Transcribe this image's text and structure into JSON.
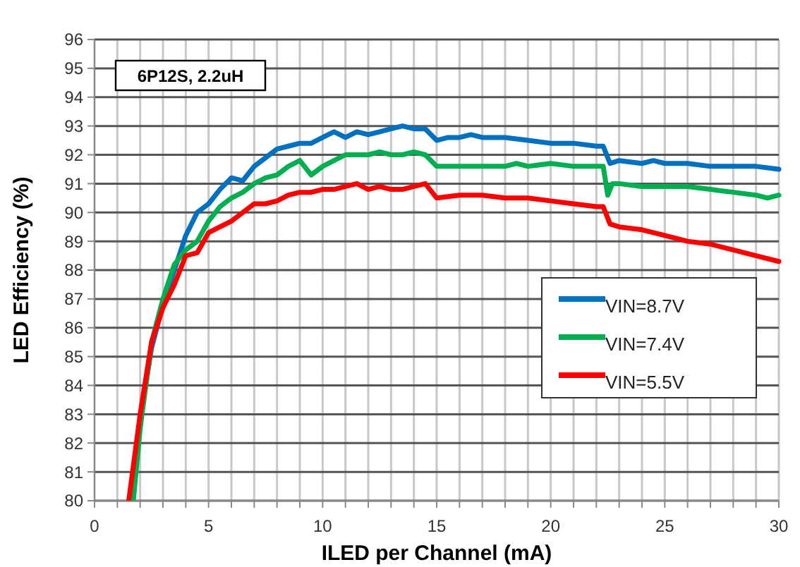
{
  "chart_data": {
    "type": "line",
    "xlabel": "ILED per Channel (mA)",
    "ylabel": "LED Efficiency (%)",
    "annotations": [
      "6P12S, 2.2uH"
    ],
    "xlim": [
      0,
      30
    ],
    "ylim": [
      80,
      96
    ],
    "xticks": [
      0,
      {
        "value": 1,
        "label": null
      },
      {
        "value": 2,
        "label": null
      },
      {
        "value": 3,
        "label": null
      },
      {
        "value": 4,
        "label": null
      },
      5,
      {
        "value": 6,
        "label": null
      },
      {
        "value": 7,
        "label": null
      },
      {
        "value": 8,
        "label": null
      },
      {
        "value": 9,
        "label": null
      },
      10,
      {
        "value": 11,
        "label": null
      },
      {
        "value": 12,
        "label": null
      },
      {
        "value": 13,
        "label": null
      },
      {
        "value": 14,
        "label": null
      },
      15,
      {
        "value": 16,
        "label": null
      },
      {
        "value": 17,
        "label": null
      },
      {
        "value": 18,
        "label": null
      },
      {
        "value": 19,
        "label": null
      },
      20,
      {
        "value": 21,
        "label": null
      },
      {
        "value": 22,
        "label": null
      },
      {
        "value": 23,
        "label": null
      },
      {
        "value": 24,
        "label": null
      },
      25,
      {
        "value": 26,
        "label": null
      },
      {
        "value": 27,
        "label": null
      },
      {
        "value": 28,
        "label": null
      },
      {
        "value": 29,
        "label": null
      },
      30
    ],
    "yticks": [
      80,
      81,
      82,
      83,
      84,
      85,
      86,
      87,
      88,
      89,
      90,
      91,
      92,
      93,
      94,
      95,
      96
    ],
    "grid": true,
    "legend": "bottom right",
    "marker": "none",
    "line_style": "solid",
    "series": [
      {
        "name": "VIN=8.7V",
        "color": "#0070c0",
        "x": [
          1.6,
          2,
          2.5,
          3,
          3.5,
          4,
          4.5,
          5,
          5.5,
          6,
          6.5,
          7,
          7.5,
          8,
          8.5,
          9,
          9.5,
          10,
          10.5,
          11,
          11.5,
          12,
          12.5,
          13,
          13.5,
          14,
          14.5,
          15,
          15.5,
          16,
          16.5,
          17,
          17.5,
          18,
          19,
          20,
          21,
          22,
          22.3,
          22.6,
          23,
          24,
          24.5,
          25,
          26,
          27,
          28,
          29,
          30
        ],
        "values": [
          80,
          82.8,
          85.3,
          86.8,
          88,
          89.2,
          90,
          90.3,
          90.8,
          91.2,
          91.1,
          91.6,
          91.9,
          92.2,
          92.3,
          92.4,
          92.4,
          92.6,
          92.8,
          92.6,
          92.8,
          92.7,
          92.8,
          92.9,
          93,
          92.9,
          92.9,
          92.5,
          92.6,
          92.6,
          92.7,
          92.6,
          92.6,
          92.6,
          92.5,
          92.4,
          92.4,
          92.3,
          92.3,
          91.7,
          91.8,
          91.7,
          91.8,
          91.7,
          91.7,
          91.6,
          91.6,
          91.6,
          91.5
        ]
      },
      {
        "name": "VIN=7.4V",
        "color": "#00b050",
        "x": [
          1.7,
          2,
          2.5,
          3,
          3.5,
          4,
          4.5,
          5,
          5.5,
          6,
          6.5,
          7,
          7.5,
          8,
          8.5,
          9,
          9.5,
          10,
          10.5,
          11,
          11.5,
          12,
          12.5,
          13,
          13.5,
          14,
          14.5,
          15,
          15.5,
          16,
          17,
          18,
          18.5,
          19,
          20,
          21,
          22,
          22.3,
          22.5,
          22.7,
          23,
          24,
          25,
          26,
          27,
          28,
          29,
          29.5,
          30
        ],
        "values": [
          80,
          82.5,
          85.5,
          87,
          88.2,
          88.7,
          89,
          89.7,
          90.2,
          90.5,
          90.7,
          91,
          91.2,
          91.3,
          91.6,
          91.8,
          91.3,
          91.6,
          91.8,
          92,
          92,
          92,
          92.1,
          92,
          92,
          92.1,
          92,
          91.6,
          91.6,
          91.6,
          91.6,
          91.6,
          91.7,
          91.6,
          91.7,
          91.6,
          91.6,
          91.6,
          90.6,
          91,
          91,
          90.9,
          90.9,
          90.9,
          90.8,
          90.7,
          90.6,
          90.5,
          90.6
        ]
      },
      {
        "name": "VIN=5.5V",
        "color": "#ff0000",
        "x": [
          1.5,
          2,
          2.5,
          3,
          3.5,
          4,
          4.5,
          5,
          5.5,
          6,
          6.5,
          7,
          7.5,
          8,
          8.5,
          9,
          9.5,
          10,
          10.5,
          11,
          11.5,
          12,
          12.5,
          13,
          13.5,
          14,
          14.5,
          15,
          16,
          17,
          18,
          19,
          20,
          21,
          22,
          22.3,
          22.6,
          23,
          24,
          25,
          26,
          27,
          28,
          29,
          30
        ],
        "values": [
          80,
          83,
          85.5,
          86.7,
          87.5,
          88.5,
          88.6,
          89.3,
          89.5,
          89.7,
          90,
          90.3,
          90.3,
          90.4,
          90.6,
          90.7,
          90.7,
          90.8,
          90.8,
          90.9,
          91,
          90.8,
          90.9,
          90.8,
          90.8,
          90.9,
          91,
          90.5,
          90.6,
          90.6,
          90.5,
          90.5,
          90.4,
          90.3,
          90.2,
          90.2,
          89.6,
          89.5,
          89.4,
          89.2,
          89,
          88.9,
          88.7,
          88.5,
          88.3
        ]
      }
    ]
  }
}
